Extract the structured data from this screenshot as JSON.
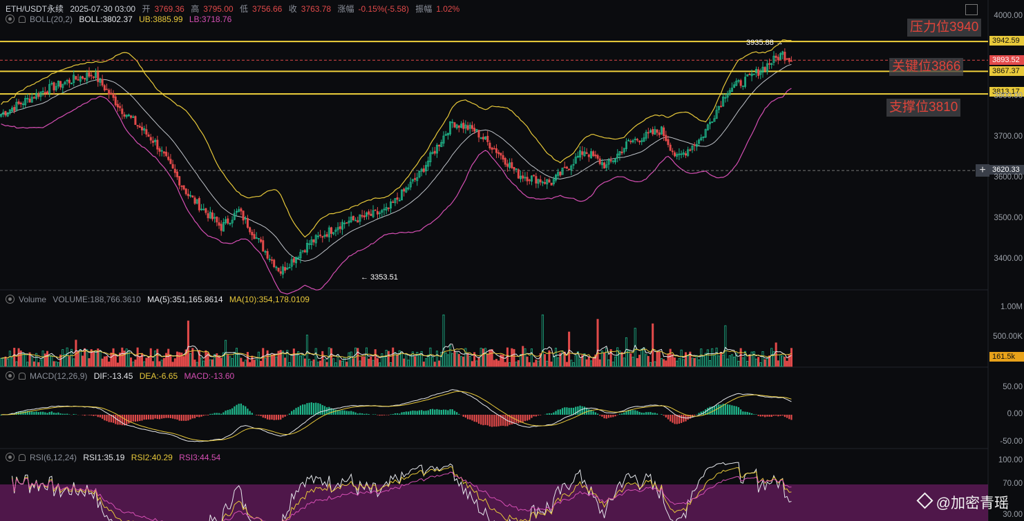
{
  "header": {
    "symbol": "ETH/USDT永续",
    "datetime": "2025-07-30 03:00",
    "open_label": "开",
    "open": "3769.36",
    "high_label": "高",
    "high": "3795.00",
    "low_label": "低",
    "low": "3756.66",
    "close_label": "收",
    "close": "3763.78",
    "change_label": "涨幅",
    "change": "-0.15%(-5.58)",
    "amp_label": "振幅",
    "amp": "1.02%"
  },
  "boll": {
    "label": "BOLL(20,2)",
    "mid": "BOLL:3802.37",
    "ub": "UB:3885.99",
    "lb": "LB:3718.76"
  },
  "volume": {
    "label": "Volume",
    "value": "VOLUME:188,766.3610",
    "ma5": "MA(5):351,165.8614",
    "ma10": "MA(10):354,178.0109"
  },
  "macd": {
    "label": "MACD(12,26,9)",
    "dif": "DIF:-13.45",
    "dea": "DEA:-6.65",
    "macd": "MACD:-13.60"
  },
  "rsi": {
    "label": "RSI(6,12,24)",
    "rsi1": "RSI1:35.19",
    "rsi2": "RSI2:40.29",
    "rsi3": "RSI3:44.54"
  },
  "levels": {
    "resistance": "压力位3940",
    "key": "关键位3866",
    "support": "支撑位3810"
  },
  "price_tags": {
    "t3942": "3942.59",
    "t3893": "3893.52",
    "t3867": "3867.37",
    "t3813": "3813.17",
    "t3620": "3620.33",
    "vol": "161.5k"
  },
  "annotations": {
    "high": "3935.88 →",
    "low": "← 3353.51"
  },
  "watermark": "@加密青瑶",
  "colors": {
    "up": "#1fb58a",
    "down": "#e24a4a",
    "ub": "#e8c93a",
    "mid": "#bfc3c9",
    "lb": "#d64fb4",
    "level": "#f2d23c"
  },
  "chart_data": [
    {
      "type": "candlestick",
      "title": "ETH/USDT永续",
      "ylim": [
        3300,
        4000
      ],
      "yticks": [
        "4000.00",
        "3800.00",
        "3700.00",
        "3600.00",
        "3500.00",
        "3400.00"
      ],
      "close_anchors": [
        {
          "i": 0,
          "v": 3760
        },
        {
          "i": 20,
          "v": 3820
        },
        {
          "i": 35,
          "v": 3850
        },
        {
          "i": 42,
          "v": 3860
        },
        {
          "i": 55,
          "v": 3770
        },
        {
          "i": 70,
          "v": 3690
        },
        {
          "i": 85,
          "v": 3560
        },
        {
          "i": 100,
          "v": 3480
        },
        {
          "i": 108,
          "v": 3520
        },
        {
          "i": 120,
          "v": 3420
        },
        {
          "i": 127,
          "v": 3370
        },
        {
          "i": 140,
          "v": 3440
        },
        {
          "i": 155,
          "v": 3490
        },
        {
          "i": 175,
          "v": 3520
        },
        {
          "i": 190,
          "v": 3610
        },
        {
          "i": 205,
          "v": 3740
        },
        {
          "i": 215,
          "v": 3720
        },
        {
          "i": 225,
          "v": 3670
        },
        {
          "i": 235,
          "v": 3610
        },
        {
          "i": 250,
          "v": 3590
        },
        {
          "i": 265,
          "v": 3670
        },
        {
          "i": 275,
          "v": 3630
        },
        {
          "i": 285,
          "v": 3690
        },
        {
          "i": 300,
          "v": 3720
        },
        {
          "i": 307,
          "v": 3650
        },
        {
          "i": 318,
          "v": 3700
        },
        {
          "i": 330,
          "v": 3820
        },
        {
          "i": 340,
          "v": 3850
        },
        {
          "i": 350,
          "v": 3890
        },
        {
          "i": 355,
          "v": 3910
        },
        {
          "i": 359,
          "v": 3895
        }
      ],
      "candle_count": 360,
      "levels": [
        3940,
        3893.52,
        3866,
        3810
      ],
      "high": 3935.88,
      "low": 3353.51
    },
    {
      "type": "bar",
      "title": "Volume",
      "yticks": [
        "1.00M",
        "500.00K"
      ],
      "ylim": [
        0,
        1000000
      ]
    },
    {
      "type": "bar",
      "title": "MACD(12,26,9)",
      "yticks": [
        "50.00",
        "0.00",
        "-50.00"
      ],
      "ylim": [
        -60,
        60
      ]
    },
    {
      "type": "line",
      "title": "RSI(6,12,24)",
      "yticks": [
        "100.00",
        "70.00",
        "30.00"
      ],
      "ylim": [
        25,
        100
      ]
    }
  ]
}
